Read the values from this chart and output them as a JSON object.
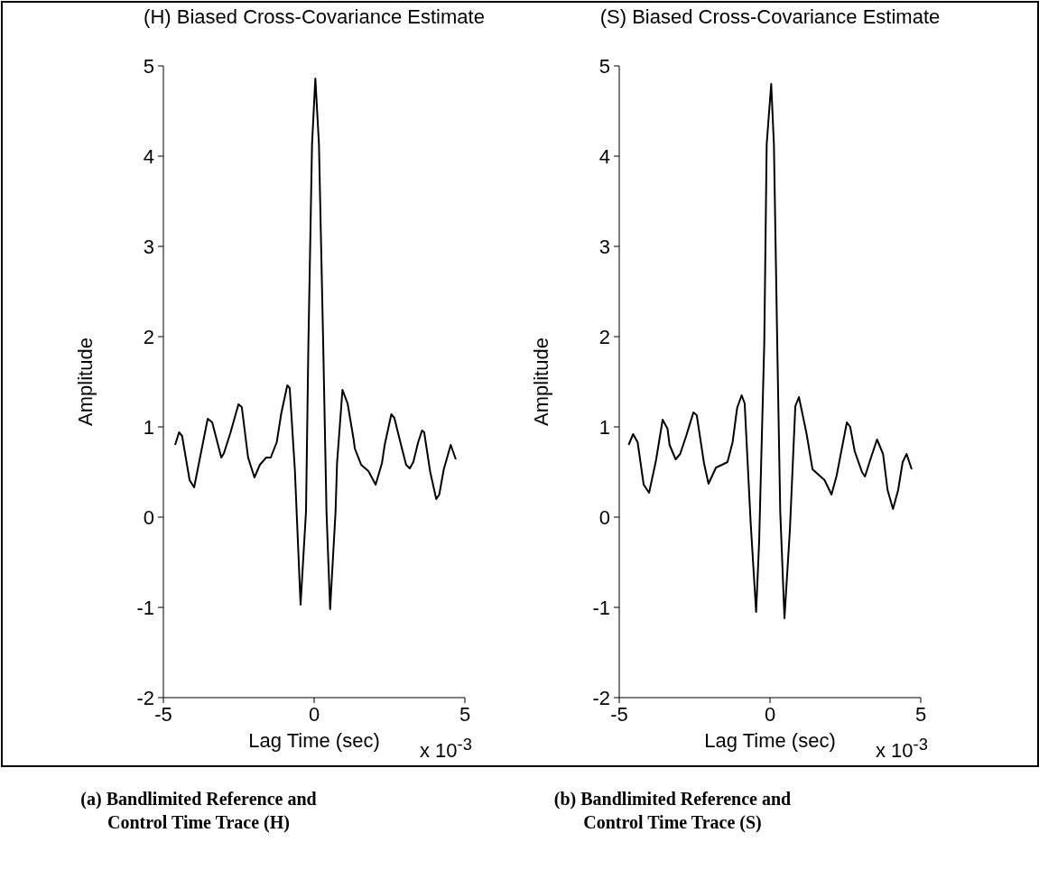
{
  "chart_data": [
    {
      "type": "line",
      "title": "(H) Biased Cross-Covariance Estimate",
      "xlabel": "Lag Time (sec)",
      "ylabel": "Amplitude",
      "xlim": [
        -5,
        5
      ],
      "xticks": [
        -5,
        0,
        5
      ],
      "ylim": [
        -2,
        5
      ],
      "yticks": [
        -2,
        -1,
        0,
        1,
        2,
        3,
        4,
        5
      ],
      "marker": "none",
      "series": [
        {
          "color": "#000000",
          "x": [
            -4.61,
            -4.48,
            -4.38,
            -4.13,
            -3.98,
            -3.53,
            -3.38,
            -3.08,
            -2.99,
            -2.78,
            -2.51,
            -2.4,
            -2.19,
            -1.98,
            -1.8,
            -1.59,
            -1.44,
            -1.24,
            -1.09,
            -0.89,
            -0.81,
            -0.64,
            -0.45,
            -0.27,
            -0.19,
            -0.07,
            0.04,
            0.16,
            0.3,
            0.41,
            0.53,
            0.71,
            0.76,
            0.94,
            1.11,
            1.31,
            1.35,
            1.56,
            1.8,
            2.04,
            2.25,
            2.34,
            2.56,
            2.66,
            2.86,
            3.05,
            3.17,
            3.29,
            3.45,
            3.58,
            3.65,
            3.85,
            4.05,
            4.15,
            4.3,
            4.53,
            4.7
          ],
          "values": [
            0.8,
            0.94,
            0.9,
            0.41,
            0.33,
            1.09,
            1.05,
            0.66,
            0.71,
            0.93,
            1.25,
            1.22,
            0.66,
            0.44,
            0.58,
            0.66,
            0.66,
            0.83,
            1.15,
            1.46,
            1.43,
            0.53,
            -0.97,
            0.06,
            1.93,
            4.13,
            4.86,
            4.13,
            1.93,
            0.06,
            -1.02,
            0.06,
            0.6,
            1.41,
            1.26,
            0.86,
            0.76,
            0.58,
            0.51,
            0.36,
            0.6,
            0.8,
            1.14,
            1.1,
            0.83,
            0.58,
            0.54,
            0.61,
            0.83,
            0.96,
            0.94,
            0.5,
            0.2,
            0.25,
            0.53,
            0.8,
            0.64
          ]
        }
      ],
      "annotations": [
        "x 10$^{-3}$",
        "(a) Bandlimited Reference and Control Time Trace (H)"
      ]
    },
    {
      "type": "line",
      "title": "(S) Biased Cross-Covariance Estimate",
      "xlabel": "Lag Time (sec)",
      "ylabel": "Amplitude",
      "xlim": [
        -5,
        5
      ],
      "xticks": [
        -5,
        0,
        5
      ],
      "ylim": [
        -2,
        5
      ],
      "yticks": [
        -2,
        -1,
        0,
        1,
        2,
        3,
        4,
        5
      ],
      "marker": "none",
      "series": [
        {
          "color": "#000000",
          "x": [
            -4.69,
            -4.54,
            -4.39,
            -4.19,
            -4.01,
            -3.78,
            -3.56,
            -3.4,
            -3.33,
            -3.13,
            -2.98,
            -2.78,
            -2.54,
            -2.43,
            -2.19,
            -2.04,
            -1.79,
            -1.59,
            -1.41,
            -1.24,
            -1.09,
            -0.94,
            -0.84,
            -0.64,
            -0.46,
            -0.36,
            -0.19,
            -0.11,
            0.04,
            0.13,
            0.24,
            0.34,
            0.48,
            0.66,
            0.84,
            0.96,
            1.21,
            1.41,
            1.81,
            2.04,
            2.21,
            2.55,
            2.66,
            2.81,
            3.05,
            3.15,
            3.35,
            3.55,
            3.75,
            3.9,
            4.08,
            4.25,
            4.4,
            4.53,
            4.7
          ],
          "values": [
            0.8,
            0.92,
            0.83,
            0.36,
            0.27,
            0.63,
            1.08,
            0.98,
            0.8,
            0.64,
            0.7,
            0.9,
            1.16,
            1.13,
            0.6,
            0.37,
            0.55,
            0.58,
            0.61,
            0.83,
            1.21,
            1.35,
            1.26,
            -0.07,
            -1.05,
            -0.27,
            1.93,
            4.13,
            4.8,
            4.13,
            1.93,
            0.06,
            -1.12,
            -0.14,
            1.23,
            1.33,
            0.93,
            0.53,
            0.41,
            0.25,
            0.46,
            1.05,
            1.0,
            0.73,
            0.5,
            0.45,
            0.66,
            0.86,
            0.7,
            0.3,
            0.09,
            0.3,
            0.61,
            0.7,
            0.53
          ]
        }
      ],
      "annotations": [
        "x 10$^{-3}$",
        "(b) Bandlimited Reference and Control Time Trace (S)"
      ]
    }
  ]
}
